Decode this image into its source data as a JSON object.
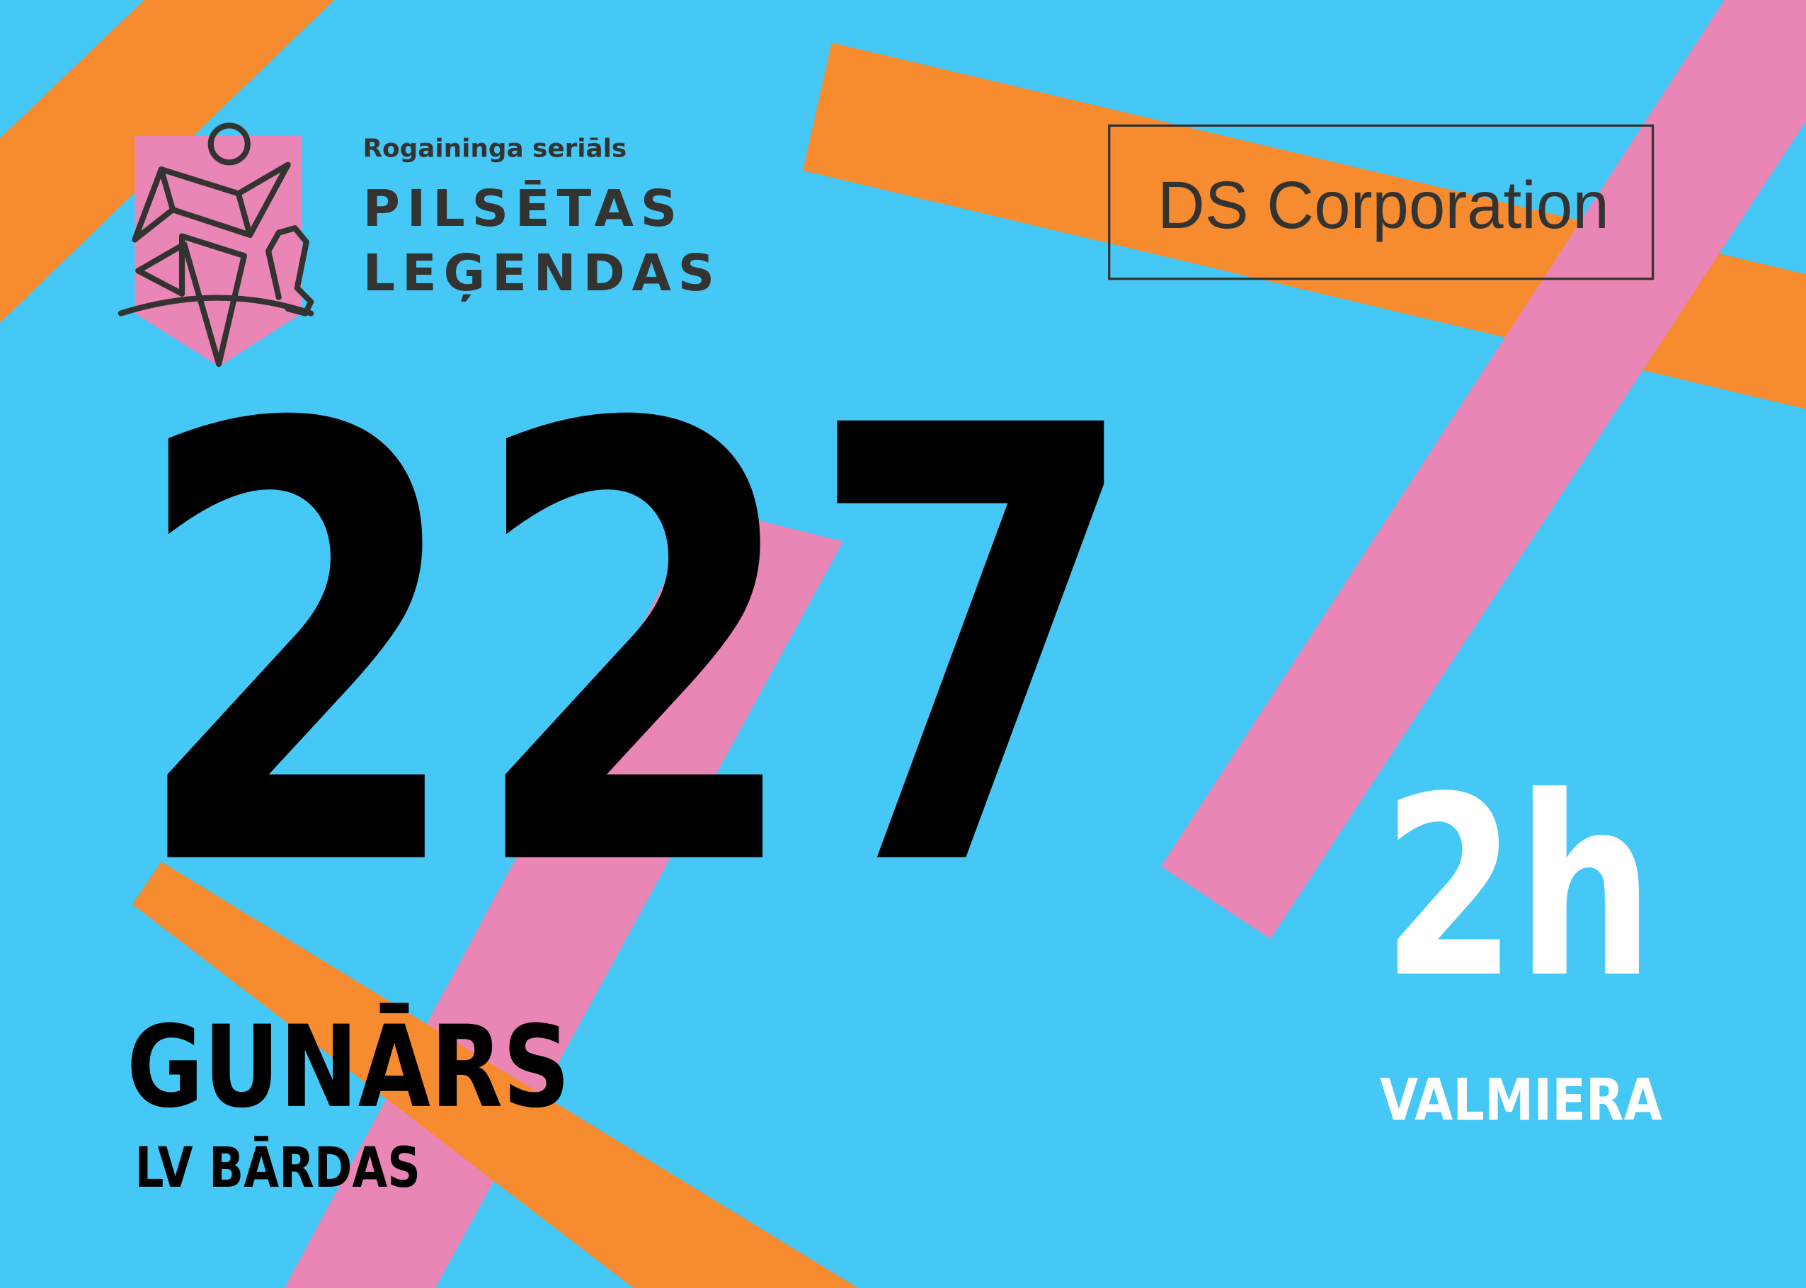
{
  "colors": {
    "background": "#45c8f5",
    "orange": "#f68b2f",
    "pink": "#ea86b6",
    "dark": "#333331",
    "number": "#000000",
    "white": "#ffffff"
  },
  "logo": {
    "series": "Rogaininga seriāls",
    "line1": "PILSĒTAS",
    "line2": "LEĢENDAS",
    "icon": "map-runner-emblem"
  },
  "sponsor": {
    "name": "DS Corporation"
  },
  "bib": {
    "number": "227",
    "first_name": "GUNĀRS",
    "team": "LV BĀRDAS",
    "duration": "2h",
    "city": "VALMIERA"
  }
}
